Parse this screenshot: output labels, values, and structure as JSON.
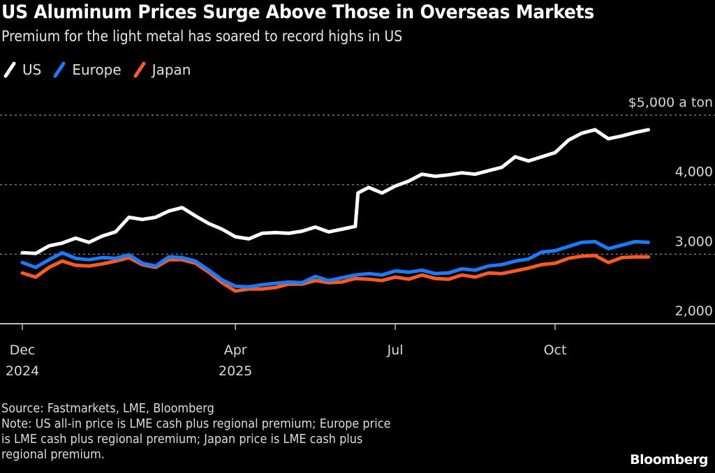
{
  "header": {
    "title": "US Aluminum Prices Surge Above Those in Overseas Markets",
    "subtitle": "Premium for the light metal has soared to record highs in US"
  },
  "legend": [
    {
      "name": "US",
      "color": "#ffffff"
    },
    {
      "name": "Europe",
      "color": "#1a7bff"
    },
    {
      "name": "Japan",
      "color": "#ff5a1f"
    }
  ],
  "footer": {
    "source": "Source: Fastmarkets, LME, Bloomberg",
    "note_lines": [
      "Note: US all-in price is LME cash plus regional premium; Europe price",
      "is LME cash plus regional premium; Japan price is LME cash plus",
      "regional premium."
    ],
    "brand": "Bloomberg"
  },
  "chart_data": {
    "type": "line",
    "title": "US Aluminum Prices Surge Above Those in Overseas Markets",
    "subtitle": "Premium for the light metal has soared to record highs in US",
    "xlabel": "",
    "ylabel": "$ a ton",
    "unit_label": "$5,000 a ton",
    "ylim": [
      2000,
      5000
    ],
    "y_ticks": [
      {
        "value": 2000,
        "label": "2,000"
      },
      {
        "value": 3000,
        "label": "3,000"
      },
      {
        "value": 4000,
        "label": "4,000"
      },
      {
        "value": 5000,
        "label": "$5,000 a ton"
      }
    ],
    "x_range_months": [
      0,
      12.2
    ],
    "x_ticks": [
      {
        "month": 0,
        "label": "Dec",
        "sublabel": "2024"
      },
      {
        "month": 4,
        "label": "Apr",
        "sublabel": "2025"
      },
      {
        "month": 7,
        "label": "Jul",
        "sublabel": ""
      },
      {
        "month": 10,
        "label": "Oct",
        "sublabel": ""
      }
    ],
    "grid": "horizontal dotted",
    "legend_position": "top-left",
    "x_unit": "months since Dec 1, 2024",
    "series": [
      {
        "name": "US",
        "color": "#ffffff",
        "x": [
          0,
          0.25,
          0.5,
          0.75,
          1.0,
          1.25,
          1.5,
          1.75,
          2.0,
          2.25,
          2.5,
          2.75,
          3.0,
          3.25,
          3.5,
          3.75,
          4.0,
          4.25,
          4.5,
          4.75,
          5.0,
          5.25,
          5.5,
          5.75,
          6.0,
          6.25,
          6.3,
          6.5,
          6.75,
          7.0,
          7.25,
          7.5,
          7.75,
          8.0,
          8.25,
          8.5,
          8.75,
          9.0,
          9.25,
          9.5,
          9.75,
          10.0,
          10.25,
          10.5,
          10.75,
          11.0,
          11.25,
          11.5,
          11.75
        ],
        "values": [
          3020,
          3010,
          3120,
          3160,
          3230,
          3170,
          3260,
          3320,
          3530,
          3500,
          3530,
          3620,
          3670,
          3550,
          3440,
          3360,
          3250,
          3220,
          3300,
          3310,
          3300,
          3330,
          3390,
          3320,
          3360,
          3400,
          3880,
          3960,
          3880,
          3980,
          4050,
          4150,
          4120,
          4140,
          4170,
          4150,
          4200,
          4250,
          4400,
          4340,
          4400,
          4460,
          4640,
          4740,
          4790,
          4660,
          4700,
          4750,
          4790
        ]
      },
      {
        "name": "Europe",
        "color": "#1a7bff",
        "x": [
          0,
          0.25,
          0.5,
          0.75,
          1.0,
          1.25,
          1.5,
          1.75,
          2.0,
          2.25,
          2.5,
          2.75,
          3.0,
          3.25,
          3.5,
          3.75,
          4.0,
          4.25,
          4.5,
          4.75,
          5.0,
          5.25,
          5.5,
          5.75,
          6.0,
          6.25,
          6.5,
          6.75,
          7.0,
          7.25,
          7.5,
          7.75,
          8.0,
          8.25,
          8.5,
          8.75,
          9.0,
          9.25,
          9.5,
          9.75,
          10.0,
          10.25,
          10.5,
          10.75,
          11.0,
          11.25,
          11.5,
          11.75
        ],
        "values": [
          2880,
          2810,
          2920,
          3020,
          2940,
          2920,
          2950,
          2940,
          2990,
          2870,
          2830,
          2960,
          2950,
          2900,
          2770,
          2630,
          2540,
          2530,
          2560,
          2580,
          2600,
          2590,
          2680,
          2620,
          2660,
          2700,
          2720,
          2700,
          2760,
          2740,
          2770,
          2720,
          2730,
          2790,
          2770,
          2830,
          2850,
          2900,
          2930,
          3030,
          3050,
          3110,
          3170,
          3180,
          3080,
          3130,
          3180,
          3170
        ]
      },
      {
        "name": "Japan",
        "color": "#ff5a1f",
        "x": [
          0,
          0.25,
          0.5,
          0.75,
          1.0,
          1.25,
          1.5,
          1.75,
          2.0,
          2.25,
          2.5,
          2.75,
          3.0,
          3.25,
          3.5,
          3.75,
          4.0,
          4.25,
          4.5,
          4.75,
          5.0,
          5.25,
          5.5,
          5.75,
          6.0,
          6.25,
          6.5,
          6.75,
          7.0,
          7.25,
          7.5,
          7.75,
          8.0,
          8.25,
          8.5,
          8.75,
          9.0,
          9.25,
          9.5,
          9.75,
          10.0,
          10.25,
          10.5,
          10.75,
          11.0,
          11.25,
          11.5,
          11.75
        ],
        "values": [
          2730,
          2670,
          2810,
          2900,
          2840,
          2830,
          2860,
          2900,
          2950,
          2850,
          2810,
          2920,
          2920,
          2870,
          2740,
          2590,
          2470,
          2500,
          2500,
          2520,
          2570,
          2570,
          2620,
          2590,
          2600,
          2650,
          2640,
          2620,
          2670,
          2640,
          2700,
          2650,
          2640,
          2700,
          2670,
          2730,
          2720,
          2760,
          2800,
          2850,
          2870,
          2940,
          2970,
          2980,
          2880,
          2950,
          2960,
          2960
        ]
      }
    ]
  }
}
